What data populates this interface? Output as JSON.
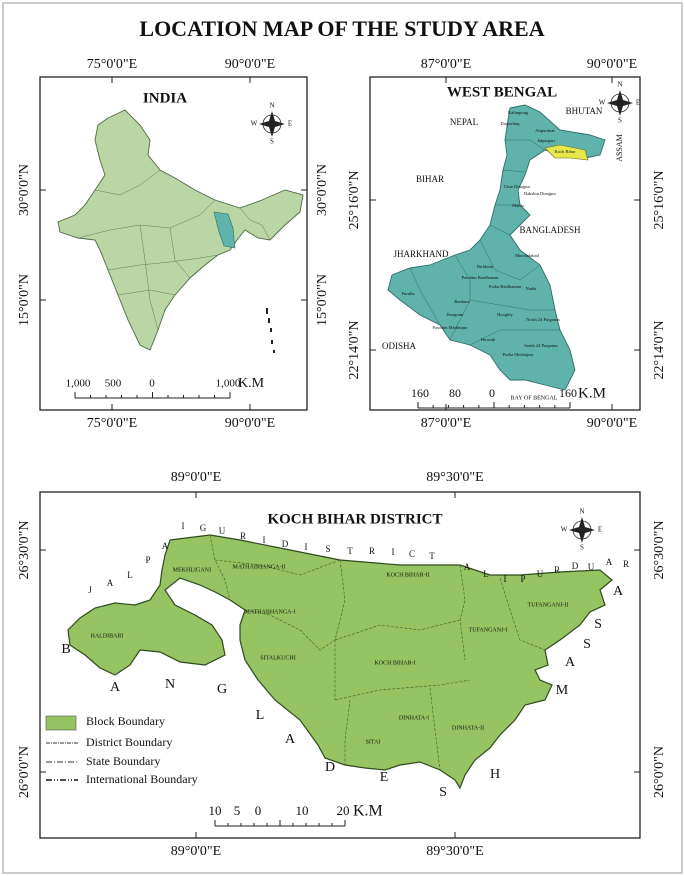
{
  "title": "LOCATION MAP OF THE STUDY AREA",
  "india": {
    "title": "INDIA",
    "top_labels": [
      "75°0'0\"E",
      "90°0'0\"E"
    ],
    "bottom_labels": [
      "75°0'0\"E",
      "90°0'0\"E"
    ],
    "left_labels": [
      "30°0'0\"N",
      "15°0'0\"N"
    ],
    "right_labels": [
      "30°0'0\"N",
      "15°0'0\"N"
    ],
    "compass": [
      "N",
      "E",
      "S",
      "W"
    ],
    "scale": [
      "1,000",
      "500",
      "0",
      "1,000"
    ],
    "scale_unit": "K.M"
  },
  "west_bengal": {
    "title": "WEST BENGAL",
    "top_labels": [
      "87°0'0\"E",
      "90°0'0\"E"
    ],
    "bottom_labels": [
      "87°0'0\"E",
      "90°0'0\"E"
    ],
    "left_labels": [
      "25°16'0\"N",
      "22°14'0\"N"
    ],
    "right_labels": [
      "25°16'0\"N",
      "22°14'0\"N"
    ],
    "compass": [
      "N",
      "E",
      "S",
      "W"
    ],
    "neighbours": [
      "NEPAL",
      "BHUTAN",
      "ASSAM",
      "BIHAR",
      "BANGLADESH",
      "JHARKHAND",
      "ODISHA",
      "BAY OF BENGAL"
    ],
    "districts": [
      "Kalimpong",
      "Darjeeling",
      "Alipurduar",
      "Jalpaiguri",
      "Koch Bihar",
      "Uttar Dinajpur",
      "Dakshin Dinajpur",
      "Malda",
      "Murshidabad",
      "Birbhum",
      "Paschim Bardhaman",
      "Purba Bardhaman",
      "Nadia",
      "Bankura",
      "Purulia",
      "Hooghly",
      "North 24 Parganas",
      "Howrah",
      "Jhargram",
      "Paschim Medinipur",
      "Purba Medinipur",
      "South 24 Parganas"
    ],
    "scale": [
      "160",
      "80",
      "0",
      "160"
    ],
    "scale_unit": "K.M"
  },
  "koch_bihar": {
    "title": "KOCH BIHAR DISTRICT",
    "top_labels": [
      "89°0'0\"E",
      "89°30'0\"E"
    ],
    "bottom_labels": [
      "89°0'0\"E",
      "89°30'0\"E"
    ],
    "left_labels": [
      "26°30'0\"N",
      "26°0'0\"N"
    ],
    "right_labels": [
      "26°30'0\"N",
      "26°0'0\"N"
    ],
    "compass": [
      "N",
      "E",
      "S",
      "W"
    ],
    "blocks": [
      "MEKHLIGANJ",
      "MATHABHANGA-II",
      "MATHABHANGA-I",
      "HALDIBARI",
      "KOCH BIHAR-II",
      "KOCH BIHAR-I",
      "TUFANGANJ-I",
      "TUFANGANJ-II",
      "SITALKUCHI",
      "DINHATA-I",
      "DINHATA-II",
      "SITAI"
    ],
    "surround": [
      [
        "J",
        "A",
        "L",
        "P",
        "A",
        "I",
        "G",
        "U",
        "R",
        "I",
        "D",
        "I",
        "S",
        "T",
        "R",
        "I",
        "C",
        "T"
      ],
      [
        "A",
        "L",
        "I",
        "P",
        "U",
        "R",
        "D",
        "U",
        "A",
        "R"
      ],
      [
        "B",
        "A",
        "N",
        "G",
        "L",
        "A",
        "D",
        "E",
        "S",
        "H"
      ],
      [
        "A",
        "S",
        "S",
        "A",
        "M"
      ]
    ],
    "legend": [
      "Block Boundary",
      "District Boundary",
      "State Boundary",
      "International Boundary"
    ],
    "scale": [
      "10",
      "5",
      "0",
      "10",
      "20"
    ],
    "scale_unit": "K.M"
  }
}
